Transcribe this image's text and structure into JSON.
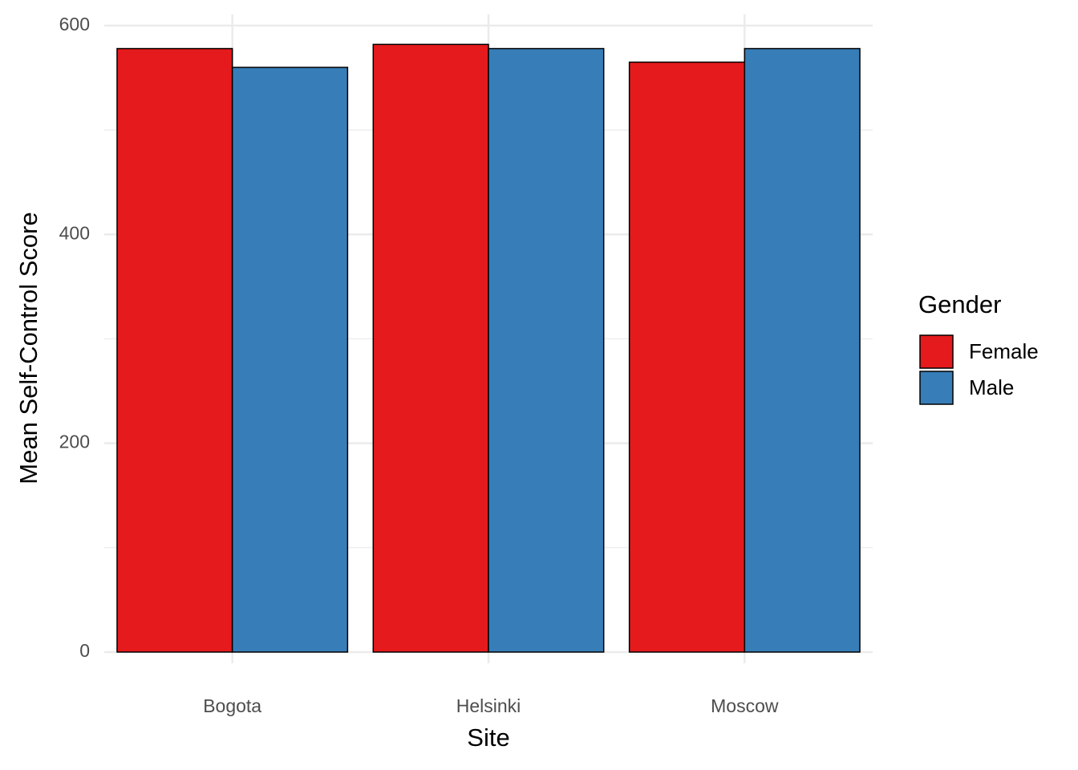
{
  "chart_data": {
    "type": "bar",
    "x_label": "Site",
    "y_label": "Mean Self-Control Score",
    "categories": [
      "Bogota",
      "Helsinki",
      "Moscow"
    ],
    "series": [
      {
        "name": "Female",
        "color": "#e41a1c",
        "values": [
          578,
          582,
          565
        ]
      },
      {
        "name": "Male",
        "color": "#377eb8",
        "values": [
          560,
          578,
          578
        ]
      }
    ],
    "legend_title": "Gender",
    "legend_position": "right",
    "ylim": [
      -10.8,
      610.7
    ],
    "yticks": [
      0,
      200,
      400,
      600
    ],
    "minor_yticks": [
      100,
      300,
      500
    ],
    "grid": true
  }
}
